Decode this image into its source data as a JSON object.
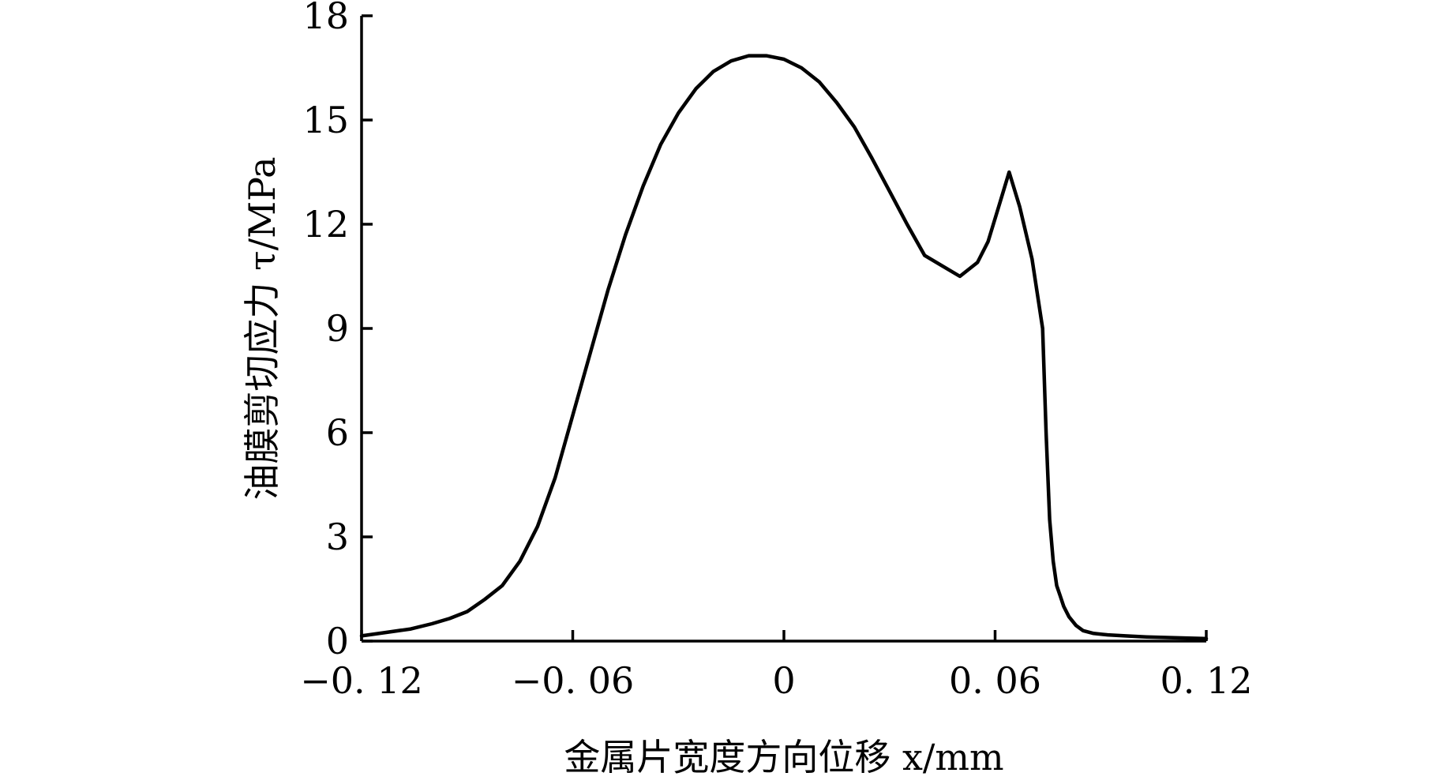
{
  "chart_data": {
    "type": "line",
    "xlabel": "金属片宽度方向位移 x/mm",
    "ylabel": "油膜剪切应力 τ/MPa",
    "xlim": [
      -0.12,
      0.12
    ],
    "ylim": [
      0,
      18
    ],
    "xticks": [
      -0.12,
      -0.06,
      0,
      0.06,
      0.12
    ],
    "xtick_labels": [
      "−0. 12",
      "−0. 06",
      "0",
      "0. 06",
      "0. 12"
    ],
    "yticks": [
      0,
      3,
      6,
      9,
      12,
      15,
      18
    ],
    "ytick_labels": [
      "0",
      "3",
      "6",
      "9",
      "12",
      "15",
      "18"
    ],
    "grid": false,
    "series": [
      {
        "x": [
          -0.12,
          -0.113,
          -0.106,
          -0.1,
          -0.095,
          -0.09,
          -0.085,
          -0.08,
          -0.075,
          -0.07,
          -0.065,
          -0.06,
          -0.055,
          -0.05,
          -0.045,
          -0.04,
          -0.035,
          -0.03,
          -0.025,
          -0.02,
          -0.015,
          -0.01,
          -0.005,
          0,
          0.005,
          0.01,
          0.015,
          0.02,
          0.025,
          0.03,
          0.035,
          0.04,
          0.045,
          0.05,
          0.055,
          0.058,
          0.061,
          0.064,
          0.067,
          0.0705,
          0.0735,
          0.0745,
          0.0755,
          0.0765,
          0.0775,
          0.0785,
          0.0795,
          0.081,
          0.083,
          0.085,
          0.088,
          0.092,
          0.097,
          0.103,
          0.11,
          0.12
        ],
        "y": [
          0.15,
          0.25,
          0.35,
          0.5,
          0.65,
          0.85,
          1.2,
          1.6,
          2.3,
          3.3,
          4.7,
          6.5,
          8.3,
          10.1,
          11.7,
          13.1,
          14.3,
          15.2,
          15.9,
          16.4,
          16.7,
          16.85,
          16.85,
          16.75,
          16.5,
          16.1,
          15.5,
          14.8,
          13.9,
          12.95,
          12.0,
          11.1,
          10.8,
          10.5,
          10.9,
          11.5,
          12.5,
          13.5,
          12.5,
          11.0,
          9.0,
          6.0,
          3.5,
          2.3,
          1.6,
          1.3,
          1.0,
          0.7,
          0.45,
          0.3,
          0.22,
          0.18,
          0.15,
          0.12,
          0.1,
          0.07
        ]
      }
    ]
  }
}
